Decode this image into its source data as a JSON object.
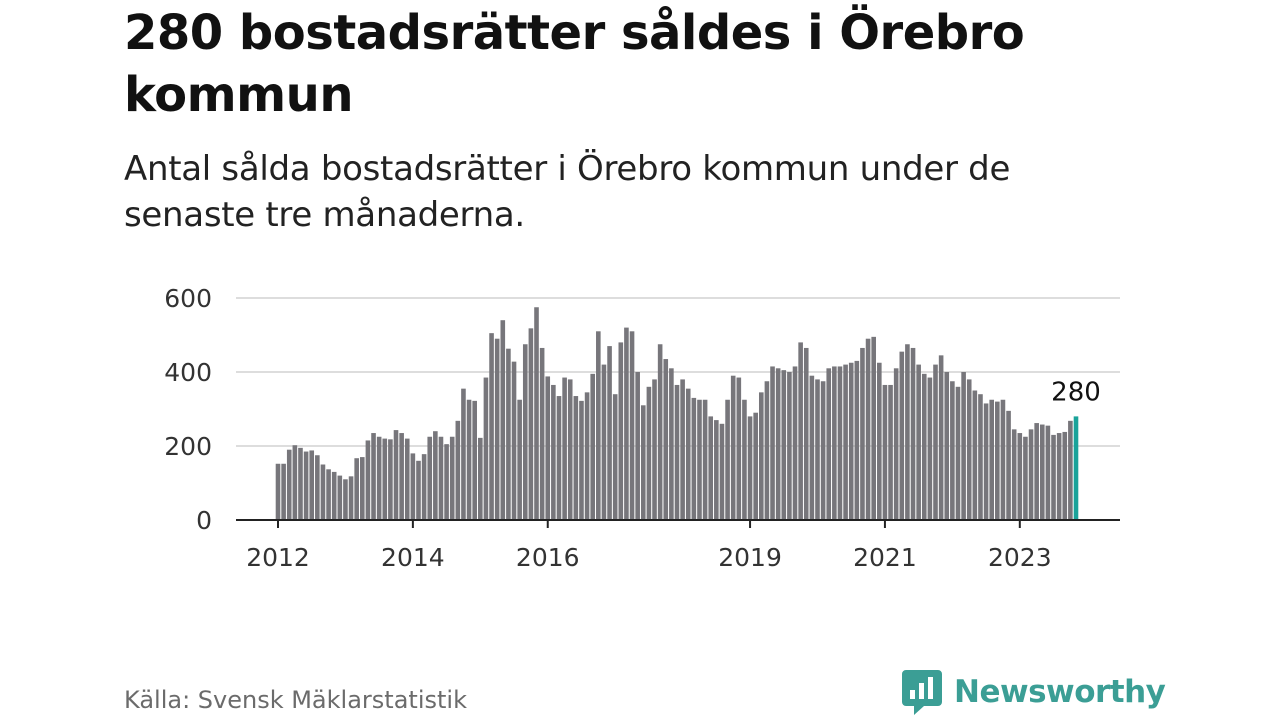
{
  "header": {
    "title": "280 bostadsrätter såldes i Örebro kommun",
    "subtitle": "Antal sålda bostadsrätter i Örebro kommun under de senaste tre månaderna."
  },
  "footer": {
    "source": "Källa: Svensk Mäklarstatistik",
    "brand": "Newsworthy",
    "brand_icon": "newsworthy-logo-icon"
  },
  "colors": {
    "bar": "#77767b",
    "highlight": "#1aa39a",
    "grid": "#dddddd",
    "axis": "#222222",
    "brand": "#3b9e95"
  },
  "chart_data": {
    "type": "bar",
    "title": "280 bostadsrätter såldes i Örebro kommun",
    "subtitle": "Antal sålda bostadsrätter i Örebro kommun under de senaste tre månaderna.",
    "xlabel": "",
    "ylabel": "",
    "ylim": [
      0,
      600
    ],
    "yticks": [
      0,
      200,
      400,
      600
    ],
    "grid": true,
    "x_start": "2012-01",
    "x_end": "2023-12",
    "frequency": "monthly",
    "xtick_labels": [
      {
        "label": "2012",
        "date": "2012-01"
      },
      {
        "label": "2014",
        "date": "2014-01"
      },
      {
        "label": "2016",
        "date": "2016-01"
      },
      {
        "label": "2019",
        "date": "2019-01"
      },
      {
        "label": "2021",
        "date": "2021-01"
      },
      {
        "label": "2023",
        "date": "2023-01"
      }
    ],
    "values": [
      152,
      152,
      190,
      202,
      195,
      185,
      188,
      175,
      150,
      137,
      130,
      120,
      110,
      118,
      167,
      170,
      215,
      235,
      225,
      220,
      218,
      243,
      235,
      220,
      180,
      160,
      178,
      225,
      240,
      225,
      205,
      225,
      268,
      355,
      325,
      322,
      222,
      385,
      505,
      490,
      540,
      463,
      428,
      325,
      475,
      518,
      575,
      465,
      388,
      365,
      335,
      385,
      380,
      335,
      322,
      345,
      395,
      510,
      420,
      470,
      340,
      480,
      520,
      510,
      400,
      310,
      360,
      380,
      475,
      435,
      410,
      365,
      380,
      355,
      330,
      325,
      325,
      280,
      270,
      260,
      325,
      390,
      385,
      325,
      280,
      290,
      345,
      375,
      415,
      410,
      405,
      400,
      415,
      480,
      465,
      390,
      380,
      375,
      410,
      415,
      415,
      420,
      425,
      430,
      465,
      490,
      495,
      425,
      365,
      365,
      410,
      455,
      475,
      465,
      420,
      395,
      385,
      420,
      445,
      400,
      375,
      360,
      400,
      380,
      350,
      340,
      315,
      325,
      320,
      325,
      295,
      245,
      235,
      225,
      245,
      262,
      258,
      255,
      230,
      235,
      238,
      268,
      280
    ],
    "highlight_last": true,
    "annotations": [
      {
        "text": "280",
        "target": "last"
      }
    ]
  }
}
